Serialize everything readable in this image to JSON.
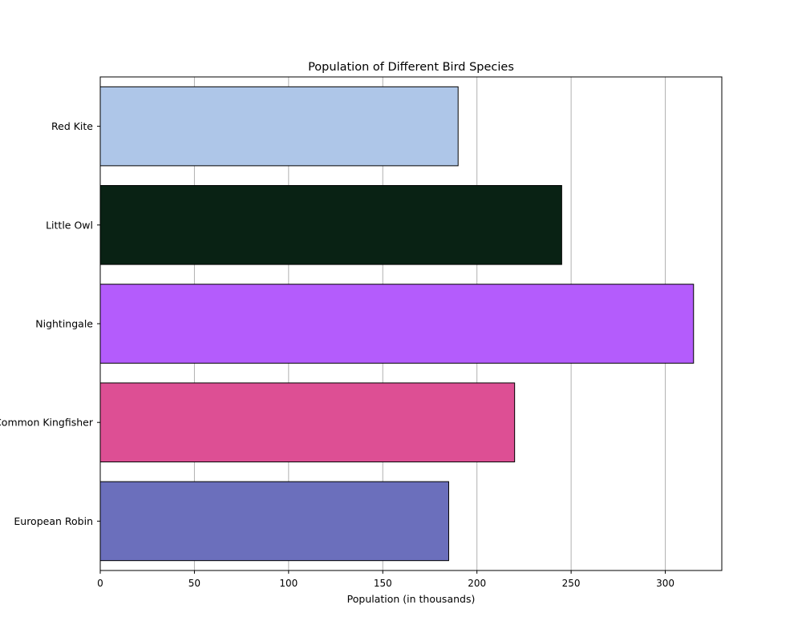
{
  "chart_data": {
    "type": "bar",
    "orientation": "horizontal",
    "title": "Population of Different Bird Species",
    "xlabel": "Population (in thousands)",
    "ylabel": "",
    "categories": [
      "European Robin",
      "Common Kingfisher",
      "Nightingale",
      "Little Owl",
      "Red Kite"
    ],
    "values": [
      185,
      220,
      315,
      245,
      190
    ],
    "colors": [
      "#6b6fbc",
      "#dd4f94",
      "#b45cfc",
      "#092214",
      "#aec6e8"
    ],
    "edge_color": "#000000",
    "xlim": [
      0,
      330
    ],
    "xticks": [
      0,
      50,
      100,
      150,
      200,
      250,
      300
    ],
    "grid": "vertical"
  }
}
